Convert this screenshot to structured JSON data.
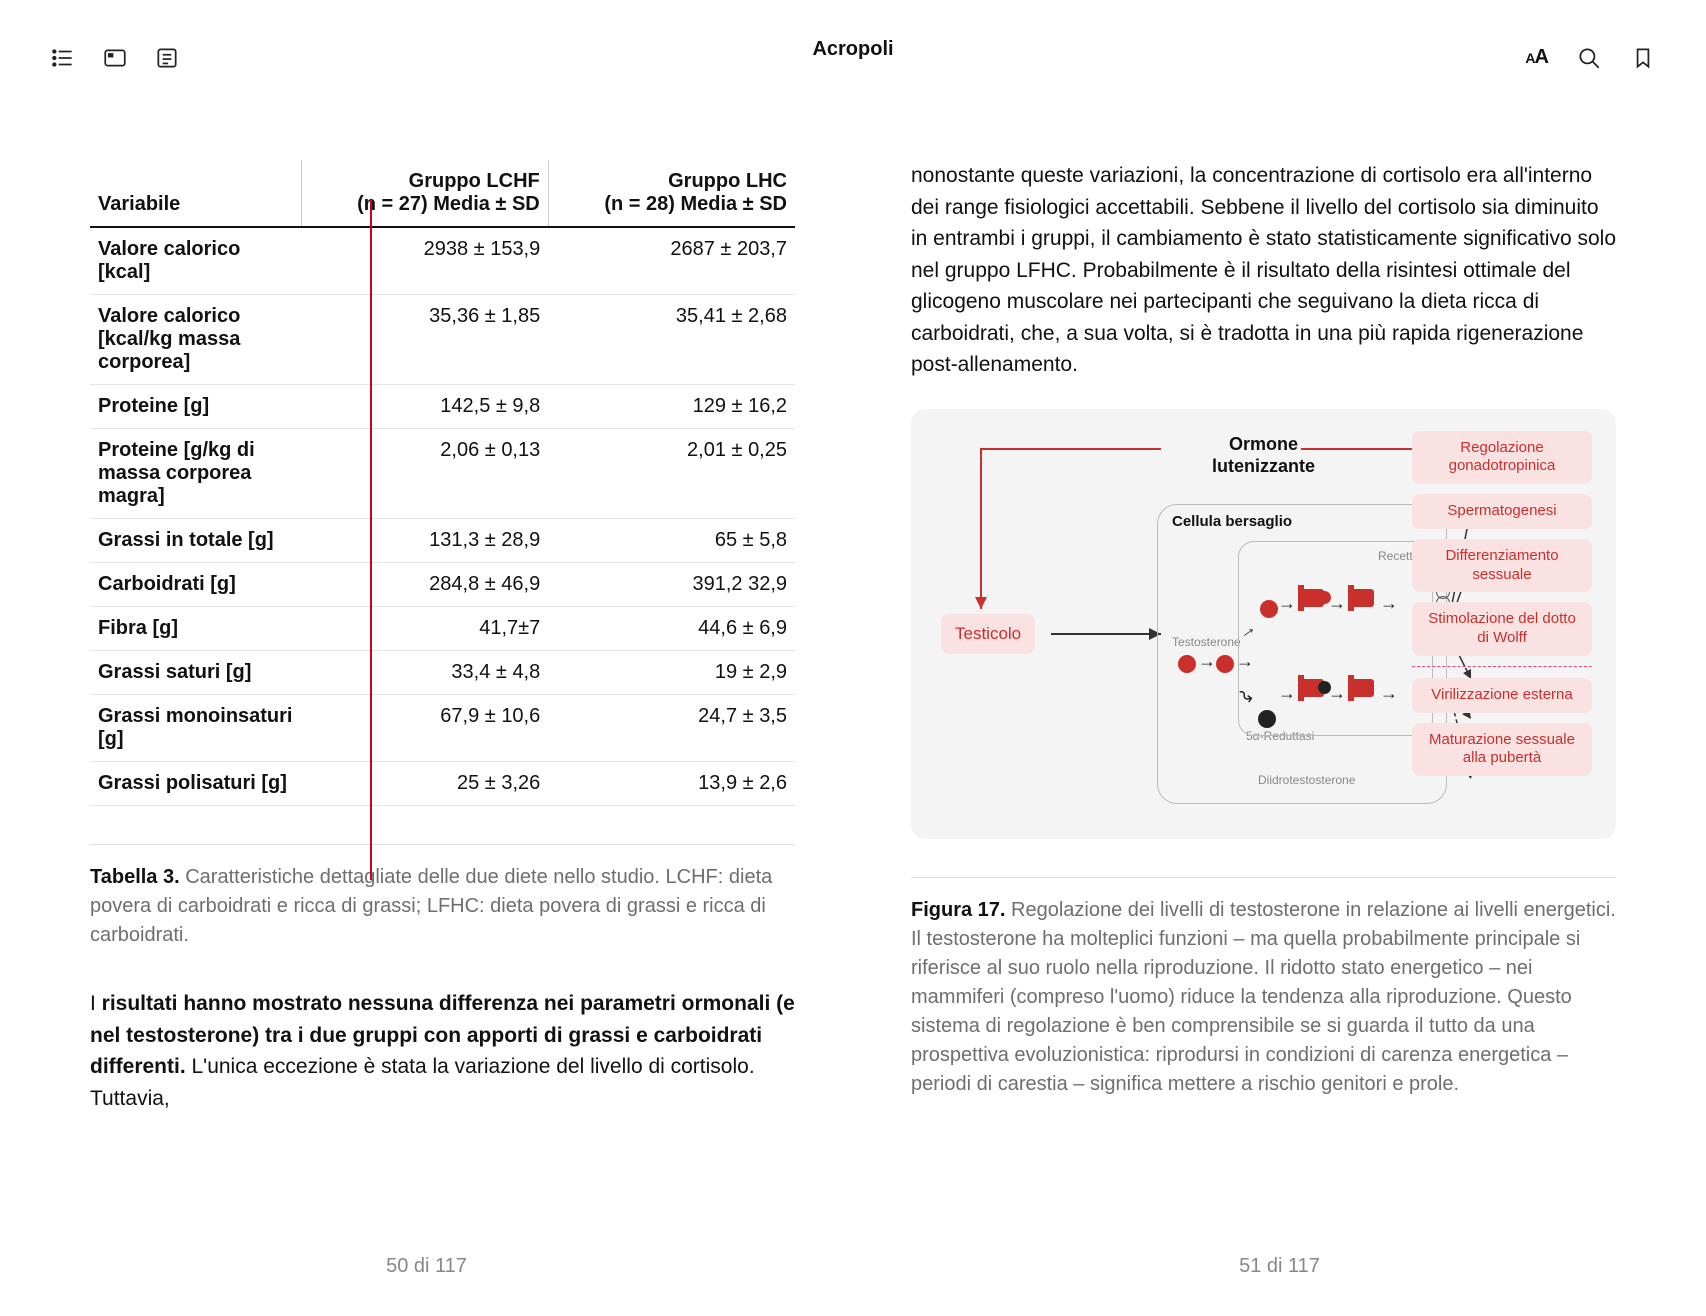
{
  "header": {
    "title": "Acropoli"
  },
  "table": {
    "columns": {
      "variable": "Variabile",
      "group1_name": "Gruppo LCHF",
      "group1_sub": "(n = 27) Media ± SD",
      "group2_name": "Gruppo LHC",
      "group2_sub": "(n = 28) Media ± SD"
    },
    "rows": [
      {
        "var": "Valore calorico [kcal]",
        "g1": "2938 ± 153,9",
        "g2": "2687 ± 203,7"
      },
      {
        "var": "Valore calorico [kcal/kg massa corporea]",
        "g1": "35,36 ± 1,85",
        "g2": "35,41 ± 2,68"
      },
      {
        "var": "Proteine [g]",
        "g1": "142,5 ± 9,8",
        "g2": "129 ± 16,2"
      },
      {
        "var": "Proteine [g/kg di massa corporea magra]",
        "g1": "2,06 ± 0,13",
        "g2": "2,01 ± 0,25"
      },
      {
        "var": "Grassi in totale [g]",
        "g1": "131,3 ± 28,9",
        "g2": "65 ± 5,8"
      },
      {
        "var": "Carboidrati [g]",
        "g1": "284,8 ± 46,9",
        "g2": "391,2 32,9"
      },
      {
        "var": "Fibra [g]",
        "g1": "41,7±7",
        "g2": "44,6 ± 6,9"
      },
      {
        "var": "Grassi saturi [g]",
        "g1": "33,4 ± 4,8",
        "g2": "19 ± 2,9"
      },
      {
        "var": "Grassi monoinsaturi [g]",
        "g1": "67,9 ± 10,6",
        "g2": "24,7 ± 3,5"
      },
      {
        "var": "Grassi polisaturi [g]",
        "g1": "25 ± 3,26",
        "g2": "13,9 ± 2,6"
      }
    ],
    "caption_label": "Tabella 3.",
    "caption_text": "Caratteristiche dettagliate delle due diete nello studio. LCHF: dieta povera di carboidrati e ricca di grassi; LFHC: dieta povera di grassi e ricca di carboidrati."
  },
  "left_body": {
    "bold": "risultati hanno mostrato nessuna differenza nei parametri ormonali (e nel testosterone) tra i due gruppi con apporti di grassi e carboidrati differenti.",
    "lead_char": "I ",
    "rest": " L'unica eccezione è stata la variazione del livello di cortisolo. Tuttavia,"
  },
  "right_para": "nonostante queste variazioni, la concentrazione di cortisolo era all'interno dei range fisiologici accettabili. Sebbene il livello del cortisolo sia diminuito in entrambi i gruppi, il cambiamento è stato statisticamente significativo solo nel gruppo LFHC. Probabilmente è il risultato della risintesi ottimale del glicogeno muscolare nei partecipanti che seguivano la dieta ricca di carboidrati, che, a sua volta, si è tradotta in una più rapida rigenerazione post-allenamento.",
  "diagram": {
    "title_line1": "Ormone",
    "title_line2": "lutenizzante",
    "testicolo": "Testicolo",
    "cellula": "Cellula bersaglio",
    "recettore": "Recettore",
    "testosterone": "Testosterone",
    "reduttasi": "5α-Reduttasi",
    "diidro": "Diidrotestosterone",
    "outcomes": [
      "Regolazione gonadotropinica",
      "Spermatogenesi",
      "Differenziamento sessuale",
      "Stimolazione del dotto di Wolff",
      "Virilizzazione esterna",
      "Maturazione sessuale alla pubertà"
    ]
  },
  "figure": {
    "label": "Figura 17.",
    "text": "Regolazione dei livelli di testosterone in relazione ai livelli energetici. Il testosterone ha molteplici funzioni – ma quella probabilmente principale si riferisce al suo ruolo nella riproduzione. Il ridotto stato energetico – nei mammiferi (compreso l'uomo) riduce la tendenza alla riproduzione. Questo sistema di regolazione è ben comprensibile se si guarda il tutto da una prospettiva evoluzionistica: riprodursi in condizioni di carenza energetica – periodi di carestia – significa mettere a rischio genitori e prole."
  },
  "pagenum": {
    "left": "50 di 117",
    "right": "51 di 117"
  },
  "colors": {
    "accent_red": "#c9302c",
    "outcome_bg": "#fbe2e2",
    "diagram_bg": "#f4f4f4"
  }
}
